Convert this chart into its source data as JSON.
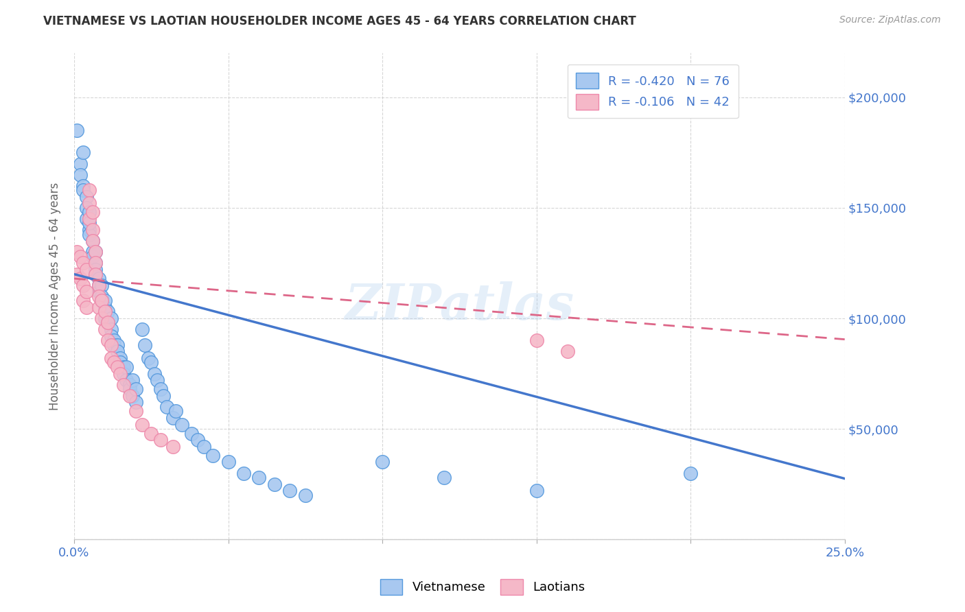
{
  "title": "VIETNAMESE VS LAOTIAN HOUSEHOLDER INCOME AGES 45 - 64 YEARS CORRELATION CHART",
  "source": "Source: ZipAtlas.com",
  "ylabel": "Householder Income Ages 45 - 64 years",
  "xlim": [
    0.0,
    0.25
  ],
  "ylim": [
    0,
    220000
  ],
  "xtick_positions": [
    0.0,
    0.05,
    0.1,
    0.15,
    0.2,
    0.25
  ],
  "xticklabels": [
    "0.0%",
    "",
    "",
    "",
    "",
    "25.0%"
  ],
  "ytick_positions": [
    0,
    50000,
    100000,
    150000,
    200000
  ],
  "ytick_labels": [
    "",
    "$50,000",
    "$100,000",
    "$150,000",
    "$200,000"
  ],
  "viet_color": "#a8c8f0",
  "lao_color": "#f5b8c8",
  "viet_edge_color": "#5599dd",
  "lao_edge_color": "#ee88aa",
  "viet_line_color": "#4477cc",
  "lao_line_color": "#dd6688",
  "background_color": "#ffffff",
  "grid_color": "#cccccc",
  "legend_r_viet": "R = -0.420",
  "legend_n_viet": "N = 76",
  "legend_r_lao": "R = -0.106",
  "legend_n_lao": "N = 42",
  "watermark": "ZIPatlas",
  "title_color": "#333333",
  "source_color": "#999999",
  "axis_color": "#4477cc",
  "viet_line_intercept": 120000,
  "viet_line_slope": -370000,
  "lao_line_intercept": 118000,
  "lao_line_slope": -110000
}
